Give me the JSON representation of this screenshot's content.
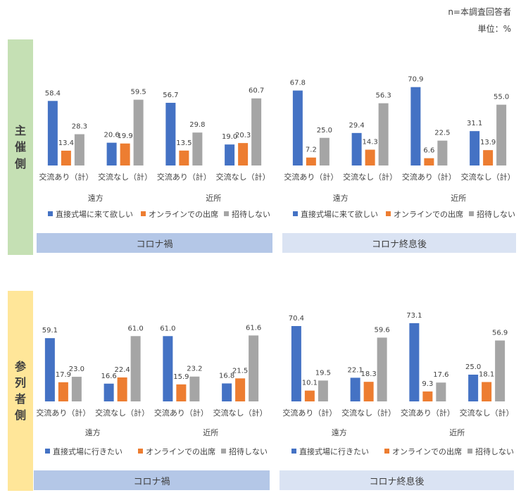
{
  "header": {
    "n_note": "n=本調査回答者",
    "unit_note": "単位：%"
  },
  "row_labels": {
    "top": [
      "主",
      "催",
      "側"
    ],
    "bottom": [
      "参",
      "列",
      "者",
      "側"
    ]
  },
  "colors": {
    "blue": "#4472c4",
    "orange": "#ed7d31",
    "gray": "#a5a5a5",
    "band_covid": "#b4c7e7",
    "band_post": "#dae3f3"
  },
  "chart_data": [
    {
      "type": "bar",
      "row": "主催側",
      "period": "コロナ禍",
      "categories": [
        "交流あり（計）",
        "交流なし（計）",
        "交流あり（計）",
        "交流なし（計）"
      ],
      "groups": [
        "遠方",
        "近所"
      ],
      "series": [
        {
          "name": "直接式場に来て欲しい",
          "values": [
            58.4,
            20.6,
            56.7,
            19.0
          ]
        },
        {
          "name": "オンラインでの出席",
          "values": [
            13.4,
            19.9,
            13.5,
            20.3
          ]
        },
        {
          "name": "招待しない",
          "values": [
            28.3,
            59.5,
            29.8,
            60.7
          ]
        }
      ]
    },
    {
      "type": "bar",
      "row": "主催側",
      "period": "コロナ終息後",
      "categories": [
        "交流あり（計）",
        "交流なし（計）",
        "交流あり（計）",
        "交流なし（計）"
      ],
      "groups": [
        "遠方",
        "近所"
      ],
      "series": [
        {
          "name": "直接式場に来て欲しい",
          "values": [
            67.8,
            29.4,
            70.9,
            31.1
          ]
        },
        {
          "name": "オンラインでの出席",
          "values": [
            7.2,
            14.3,
            6.6,
            13.9
          ]
        },
        {
          "name": "招待しない",
          "values": [
            25.0,
            56.3,
            22.5,
            55.0
          ]
        }
      ]
    },
    {
      "type": "bar",
      "row": "参列者側",
      "period": "コロナ禍",
      "categories": [
        "交流あり（計）",
        "交流なし（計）",
        "交流あり（計）",
        "交流なし（計）"
      ],
      "groups": [
        "遠方",
        "近所"
      ],
      "series": [
        {
          "name": "直接式場に行きたい",
          "values": [
            59.1,
            16.6,
            61.0,
            16.8
          ]
        },
        {
          "name": "オンラインでの出席",
          "values": [
            17.9,
            22.4,
            15.9,
            21.5
          ]
        },
        {
          "name": "招待しない",
          "values": [
            23.0,
            61.0,
            23.2,
            61.6
          ]
        }
      ]
    },
    {
      "type": "bar",
      "row": "参列者側",
      "period": "コロナ終息後",
      "categories": [
        "交流あり（計）",
        "交流なし（計）",
        "交流あり（計）",
        "交流なし（計）"
      ],
      "groups": [
        "遠方",
        "近所"
      ],
      "series": [
        {
          "name": "直接式場に行きたい",
          "values": [
            70.4,
            22.1,
            73.1,
            25.0
          ]
        },
        {
          "name": "オンラインでの出席",
          "values": [
            10.1,
            18.3,
            9.3,
            18.1
          ]
        },
        {
          "name": "招待しない",
          "values": [
            19.5,
            59.6,
            17.6,
            56.9
          ]
        }
      ]
    }
  ]
}
